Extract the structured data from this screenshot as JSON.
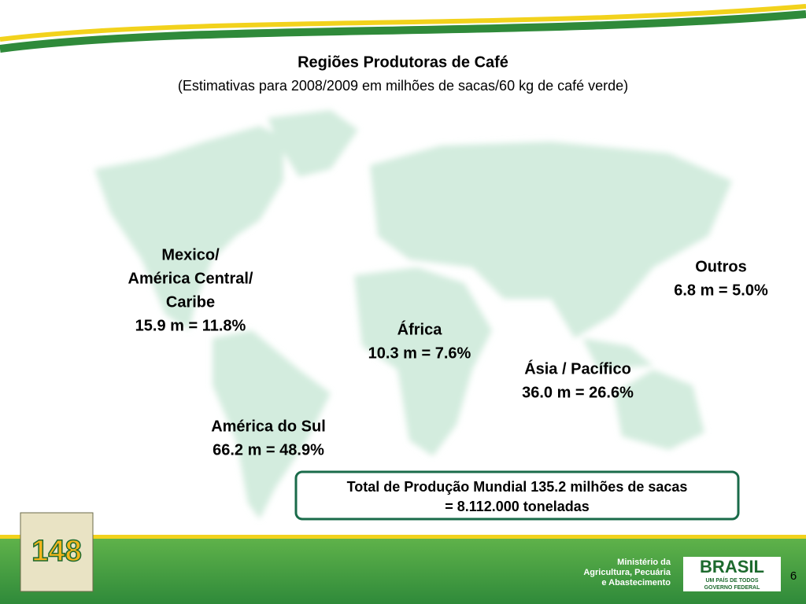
{
  "header": {
    "title": "Regiões Produtoras de Café",
    "subtitle": "(Estimativas para 2008/2009 em milhões de sacas/60 kg de café verde)"
  },
  "regions": [
    {
      "lines": [
        "Mexico/",
        "América Central/",
        "Caribe",
        "15.9 m = 11.8%"
      ]
    },
    {
      "lines": [
        "Outros",
        "6.8 m = 5.0%"
      ]
    },
    {
      "lines": [
        "África",
        "10.3 m = 7.6%"
      ]
    },
    {
      "lines": [
        "Ásia / Pacífico",
        "36.0 m = 26.6%"
      ]
    },
    {
      "lines": [
        "América do Sul",
        "66.2 m = 48.9%"
      ]
    }
  ],
  "total": {
    "lines": [
      "Total de Produção Mundial  135.2 milhões de sacas",
      "= 8.112.000 toneladas"
    ]
  },
  "footer": {
    "logo_number": "148",
    "ministry": [
      "Ministério da",
      "Agricultura, Pecuária",
      "e Abastecimento"
    ],
    "brand": "BRASIL",
    "brand_sub": [
      "UM PAÍS DE TODOS",
      "GOVERNO FEDERAL"
    ],
    "page": "6"
  }
}
